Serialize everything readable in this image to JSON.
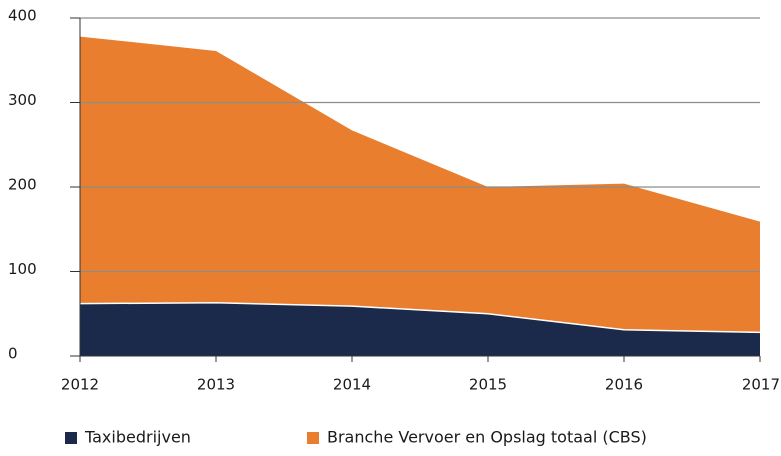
{
  "chart_data": {
    "type": "area",
    "x": [
      "2012",
      "2013",
      "2014",
      "2015",
      "2016",
      "2017"
    ],
    "series": [
      {
        "name": "Branche Vervoer en Opslag totaal (CBS)",
        "color": "#e87e2e",
        "values": [
          378,
          361,
          267,
          200,
          204,
          159
        ]
      },
      {
        "name": "Taxibedrijven",
        "color": "#1b2a4a",
        "values": [
          62,
          63,
          59,
          50,
          31,
          28
        ]
      }
    ],
    "ylim": [
      0,
      400
    ],
    "yticks": [
      0,
      100,
      200,
      300,
      400
    ],
    "grid": true
  }
}
